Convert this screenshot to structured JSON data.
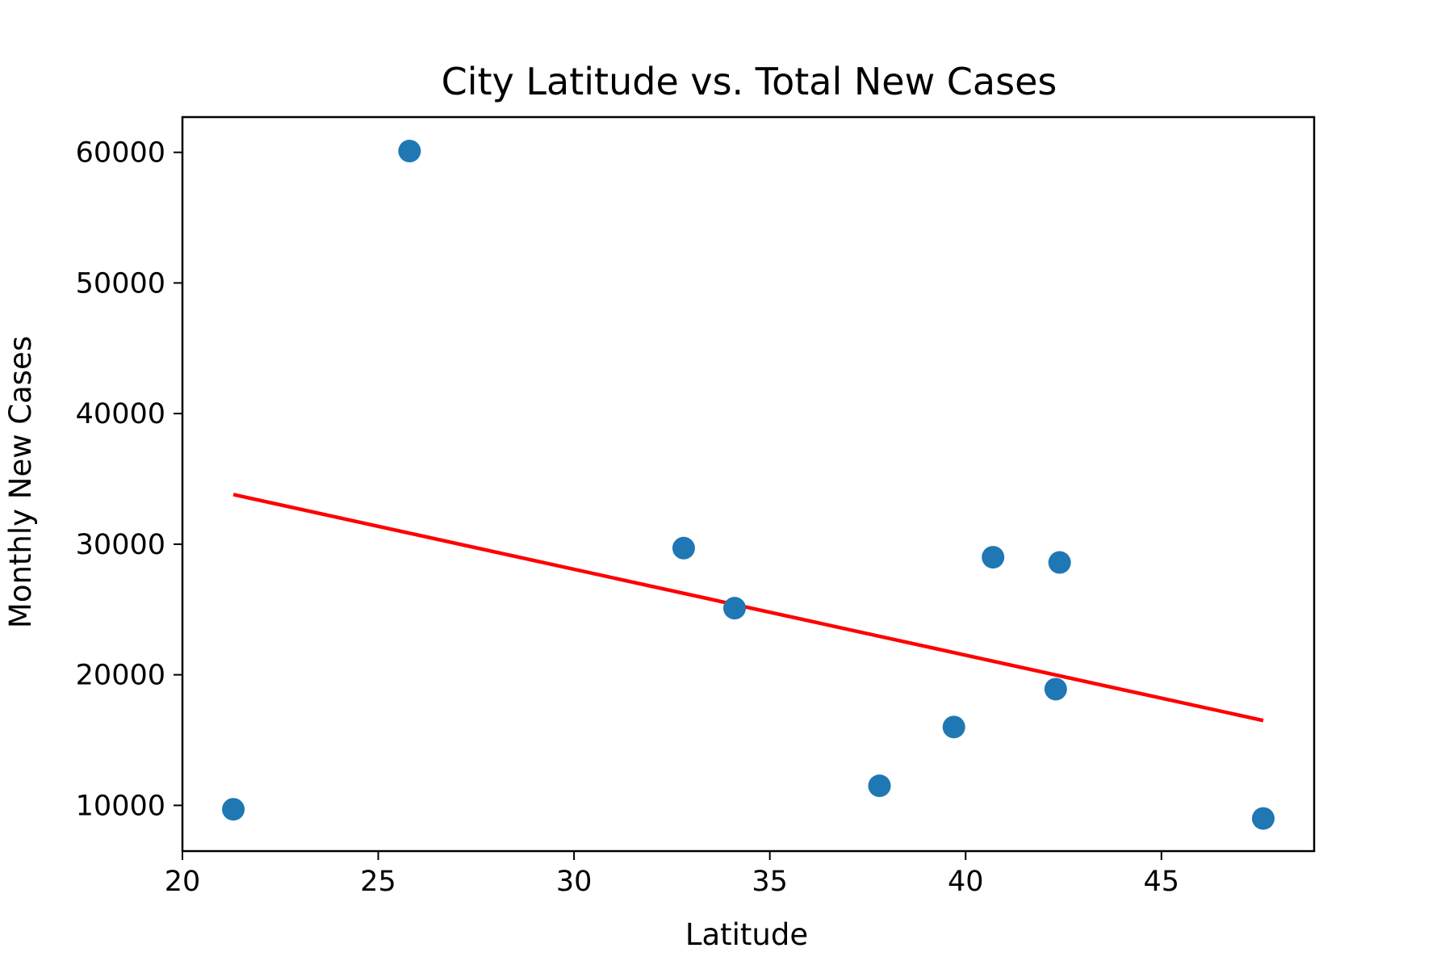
{
  "chart_data": {
    "type": "scatter",
    "title": "City Latitude vs. Total New Cases",
    "xlabel": "Latitude",
    "ylabel": "Monthly New Cases",
    "xlim": [
      20,
      48.9
    ],
    "ylim": [
      6500,
      62700
    ],
    "xticks": [
      20,
      25,
      30,
      35,
      40,
      45
    ],
    "yticks": [
      10000,
      20000,
      30000,
      40000,
      50000,
      60000
    ],
    "grid": false,
    "points": [
      {
        "x": 21.3,
        "y": 9700
      },
      {
        "x": 25.8,
        "y": 60100
      },
      {
        "x": 32.8,
        "y": 29700
      },
      {
        "x": 34.1,
        "y": 25100
      },
      {
        "x": 37.8,
        "y": 11500
      },
      {
        "x": 39.7,
        "y": 16000
      },
      {
        "x": 40.7,
        "y": 29000
      },
      {
        "x": 42.3,
        "y": 18900
      },
      {
        "x": 42.4,
        "y": 28600
      },
      {
        "x": 47.6,
        "y": 9000
      }
    ],
    "regression_line": {
      "x": [
        21.3,
        47.6
      ],
      "y": [
        33800,
        16500
      ]
    },
    "colors": {
      "points": "#1f77b4",
      "regression_line": "#ff0000",
      "axes": "#000000"
    }
  }
}
